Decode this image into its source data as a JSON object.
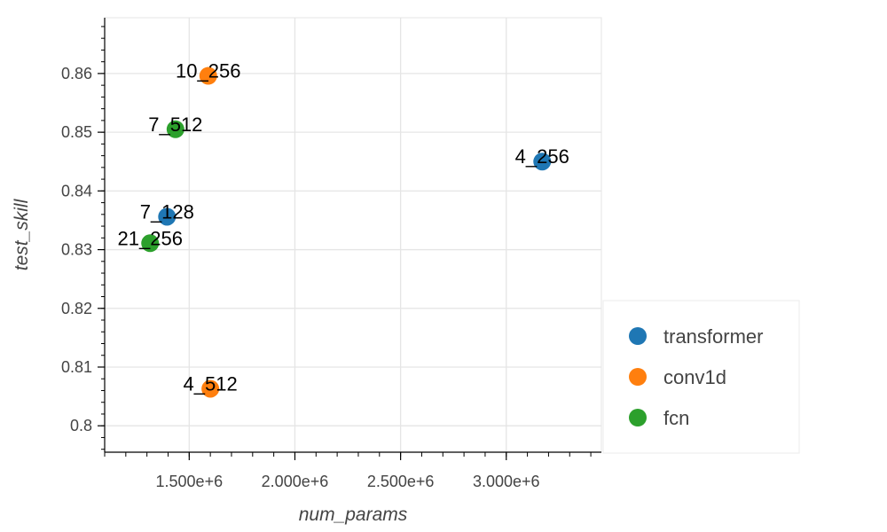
{
  "chart_data": {
    "type": "scatter",
    "xlabel": "num_params",
    "ylabel": "test_skill",
    "xlim": [
      1100000,
      3450000
    ],
    "ylim": [
      0.7955,
      0.8695
    ],
    "xticks": [
      1500000,
      2000000,
      2500000,
      3000000
    ],
    "xtick_labels": [
      "1.500e+6",
      "2.000e+6",
      "2.500e+6",
      "3.000e+6"
    ],
    "yticks": [
      0.8,
      0.81,
      0.82,
      0.83,
      0.84,
      0.85,
      0.86
    ],
    "ytick_labels": [
      "0.8",
      "0.81",
      "0.82",
      "0.83",
      "0.84",
      "0.85",
      "0.86"
    ],
    "grid": true,
    "legend_position": "bottom-right, outside plot area",
    "series": [
      {
        "name": "transformer",
        "color": "#1f77b4",
        "points": [
          {
            "x": 3170000,
            "y": 0.845,
            "label": "4_256"
          },
          {
            "x": 1395000,
            "y": 0.8356,
            "label": "7_128"
          }
        ]
      },
      {
        "name": "conv1d",
        "color": "#ff7f0e",
        "points": [
          {
            "x": 1590000,
            "y": 0.8596,
            "label": "10_256"
          },
          {
            "x": 1600000,
            "y": 0.8063,
            "label": "4_512"
          }
        ]
      },
      {
        "name": "fcn",
        "color": "#2ca02c",
        "points": [
          {
            "x": 1435000,
            "y": 0.8505,
            "label": "7_512"
          },
          {
            "x": 1315000,
            "y": 0.8311,
            "label": "21_256"
          }
        ]
      }
    ]
  }
}
